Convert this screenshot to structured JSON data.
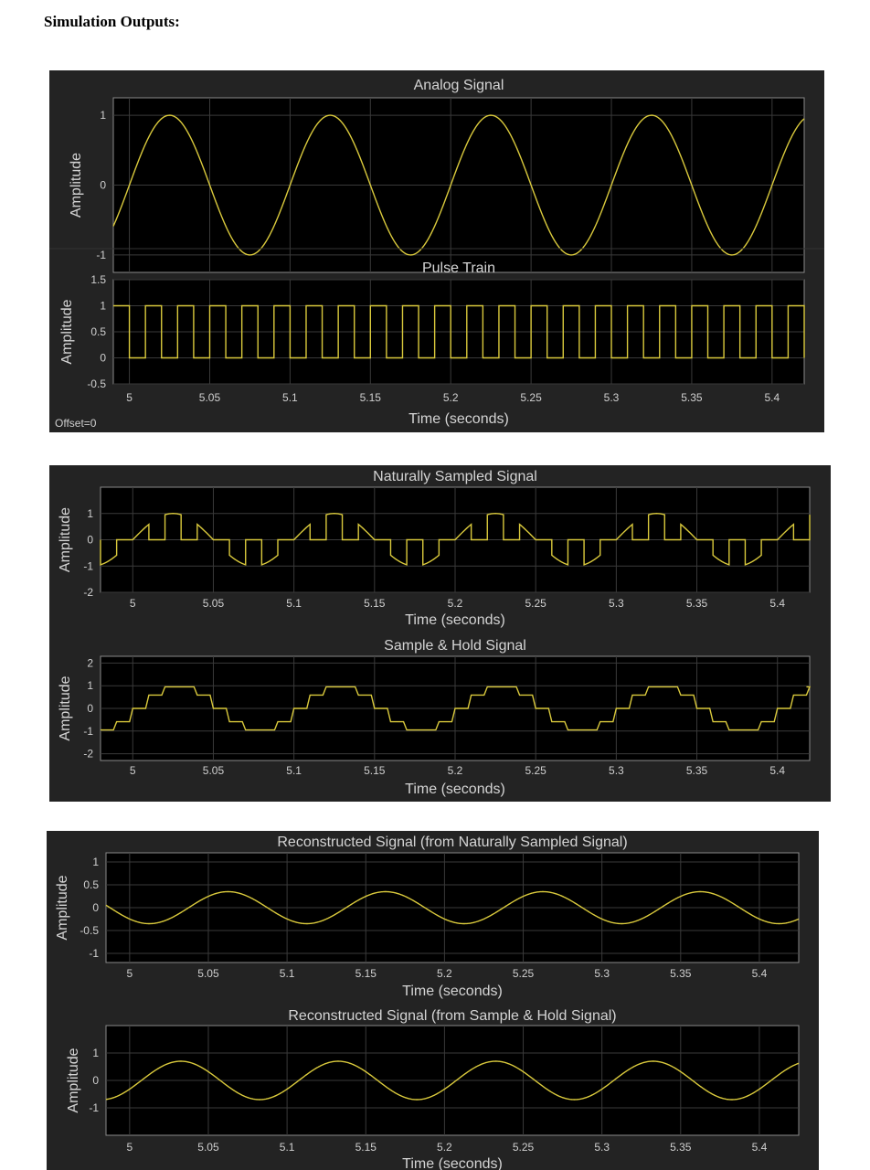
{
  "page": {
    "heading": "Simulation Outputs:"
  },
  "colors": {
    "panel_bg": "#232323",
    "plot_bg": "#000000",
    "grid": "#3a3a3a",
    "trace": "#d9c93c",
    "text": "#d4d4d4"
  },
  "chart_data": [
    {
      "type": "line",
      "group": 0,
      "title": "Analog Signal",
      "xlabel": "Time (seconds)",
      "ylabel": "Amplitude",
      "xlim": [
        4.99,
        5.42
      ],
      "ylim": [
        -1.25,
        1.25
      ],
      "xticks": [
        "5",
        "5.05",
        "5.1",
        "5.15",
        "5.2",
        "5.25",
        "5.3",
        "5.35",
        "5.4"
      ],
      "yticks": [
        "-1",
        "0",
        "1"
      ],
      "grid": true,
      "series": [
        {
          "kind": "sine",
          "amplitude": 1,
          "frequency_hz": 10,
          "phase_shift_s": 0.0,
          "x_start": 4.99,
          "x_end": 5.42
        }
      ]
    },
    {
      "type": "line",
      "group": 0,
      "title": "Pulse Train",
      "xlabel": "Time (seconds)",
      "ylabel": "Amplitude",
      "xlim": [
        4.99,
        5.42
      ],
      "ylim": [
        -0.5,
        1.5
      ],
      "xticks": [
        "5",
        "5.05",
        "5.1",
        "5.15",
        "5.2",
        "5.25",
        "5.3",
        "5.35",
        "5.4"
      ],
      "yticks": [
        "-0.5",
        "0",
        "0.5",
        "1",
        "1.5"
      ],
      "grid": true,
      "annotation": "Offset=0",
      "series": [
        {
          "kind": "pulse",
          "period_s": 0.02,
          "duty": 0.5,
          "high": 1,
          "low": 0,
          "first_high_s": 4.99,
          "x_start": 4.99,
          "x_end": 5.42
        }
      ]
    },
    {
      "type": "line",
      "group": 1,
      "title": "Naturally Sampled Signal",
      "xlabel": "Time (seconds)",
      "ylabel": "Amplitude",
      "xlim": [
        4.98,
        5.42
      ],
      "ylim": [
        -2,
        2
      ],
      "xticks": [
        "5",
        "5.05",
        "5.1",
        "5.15",
        "5.2",
        "5.25",
        "5.3",
        "5.35",
        "5.4"
      ],
      "yticks": [
        "-2",
        "-1",
        "0",
        "1"
      ],
      "grid": true,
      "series": [
        {
          "kind": "natural",
          "amplitude": 1,
          "frequency_hz": 10,
          "phase_shift_s": 0.0,
          "period_s": 0.02,
          "duty": 0.5,
          "first_high_s": 4.98,
          "x_start": 4.98,
          "x_end": 5.42
        }
      ]
    },
    {
      "type": "line",
      "group": 1,
      "title": "Sample & Hold Signal",
      "xlabel": "Time (seconds)",
      "ylabel": "Amplitude",
      "xlim": [
        4.98,
        5.42
      ],
      "ylim": [
        -2.3,
        2.3
      ],
      "xticks": [
        "5",
        "5.05",
        "5.1",
        "5.15",
        "5.2",
        "5.25",
        "5.3",
        "5.35",
        "5.4"
      ],
      "yticks": [
        "-2",
        "-1",
        "0",
        "1",
        "2"
      ],
      "grid": true,
      "series": [
        {
          "kind": "hold",
          "amplitude": 1,
          "frequency_hz": 10,
          "phase_shift_s": 0.0,
          "period_s": 0.01,
          "ramp_s": 0.002,
          "x_start": 4.98,
          "x_end": 5.42
        }
      ]
    },
    {
      "type": "line",
      "group": 2,
      "title": "Reconstructed Signal (from Naturally Sampled Signal)",
      "xlabel": "Time (seconds)",
      "ylabel": "Amplitude",
      "xlim": [
        4.985,
        5.425
      ],
      "ylim": [
        -1.2,
        1.2
      ],
      "xticks": [
        "5",
        "5.05",
        "5.1",
        "5.15",
        "5.2",
        "5.25",
        "5.3",
        "5.35",
        "5.4"
      ],
      "yticks": [
        "-1",
        "-0.5",
        "0",
        "0.5",
        "1"
      ],
      "grid": true,
      "series": [
        {
          "kind": "sine",
          "amplitude": 0.35,
          "frequency_hz": 10,
          "phase_shift_s": 0.0375,
          "x_start": 4.985,
          "x_end": 5.425
        }
      ]
    },
    {
      "type": "line",
      "group": 2,
      "title": "Reconstructed Signal (from Sample & Hold Signal)",
      "xlabel": "Time (seconds)",
      "ylabel": "Amplitude",
      "xlim": [
        4.985,
        5.425
      ],
      "ylim": [
        -2,
        2
      ],
      "xticks": [
        "5",
        "5.05",
        "5.1",
        "5.15",
        "5.2",
        "5.25",
        "5.3",
        "5.35",
        "5.4"
      ],
      "yticks": [
        "-1",
        "0",
        "1"
      ],
      "grid": true,
      "series": [
        {
          "kind": "sine",
          "amplitude": 0.7,
          "frequency_hz": 10,
          "phase_shift_s": 0.0075,
          "x_start": 4.985,
          "x_end": 5.425
        }
      ]
    }
  ]
}
